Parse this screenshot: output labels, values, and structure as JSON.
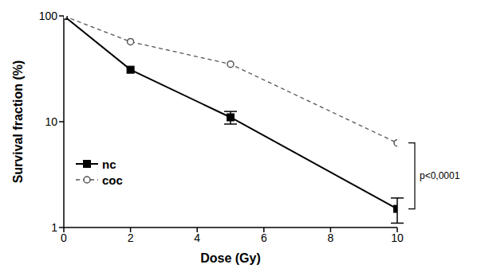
{
  "chart_data": {
    "type": "line",
    "x_label": "Dose (Gy)",
    "y_label": "Survival fraction (%)",
    "x": [
      0,
      2,
      5,
      10
    ],
    "xlim": [
      0,
      10
    ],
    "xticks": [
      0,
      2,
      4,
      6,
      8,
      10
    ],
    "ylim": [
      1,
      100
    ],
    "yticks": [
      1,
      10,
      100
    ],
    "log": "y",
    "legend": "lower left",
    "series": [
      {
        "name": "nc",
        "color": "#000000",
        "marker": "square",
        "line_style": "solid",
        "values": [
          100,
          31,
          11,
          1.5
        ],
        "errors": [
          0,
          0,
          1.5,
          0.4
        ]
      },
      {
        "name": "coc",
        "color": "#555555",
        "marker": "circle",
        "line_style": "dashed",
        "values": [
          100,
          57,
          35,
          6.3
        ]
      }
    ],
    "annotations": [
      {
        "text": "p<0,0001"
      }
    ]
  }
}
